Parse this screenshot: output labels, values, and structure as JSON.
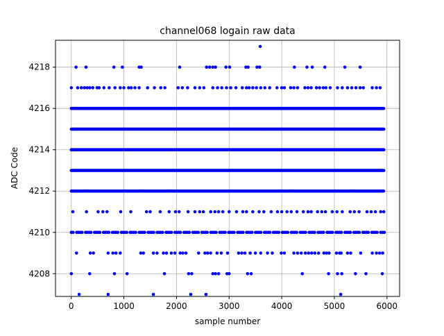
{
  "chart_data": {
    "type": "scatter",
    "title": "channel068 logain raw data",
    "xlabel": "sample number",
    "ylabel": "ADC Code",
    "xlim": [
      -300,
      6240
    ],
    "ylim": [
      4206.9,
      4219.3
    ],
    "xticks": [
      0,
      1000,
      2000,
      3000,
      4000,
      5000,
      6000
    ],
    "yticks": [
      4208,
      4210,
      4212,
      4214,
      4216,
      4218
    ],
    "xtick_labels": [
      "0",
      "1000",
      "2000",
      "3000",
      "4000",
      "5000",
      "6000"
    ],
    "ytick_labels": [
      "4208",
      "4210",
      "4212",
      "4214",
      "4216",
      "4218"
    ],
    "grid": true,
    "marker_color": "#0000ff",
    "n_samples": 5950,
    "series": [
      {
        "values_by_level": [
          {
            "y": 4207,
            "x": [
              150,
              700,
              1560,
              2270,
              2560,
              5120
            ]
          },
          {
            "y": 4208,
            "x": [
              0,
              350,
              820,
              1060,
              1770,
              2230,
              2290,
              2690,
              2740,
              2800,
              2960,
              3000,
              3350,
              3420,
              4390,
              4890,
              5060,
              5140,
              5400,
              5600,
              5910
            ]
          },
          {
            "y": 4209,
            "x": [
              100,
              360,
              420,
              700,
              790,
              850,
              930,
              1320,
              1370,
              1560,
              1630,
              1750,
              1810,
              1900,
              1970,
              2070,
              2120,
              2180,
              2420,
              2540,
              2590,
              2650,
              2770,
              2850,
              2970,
              3180,
              3240,
              3300,
              3400,
              3500,
              3600,
              3730,
              3820,
              3990,
              4050,
              4230,
              4300,
              4370,
              4450,
              4510,
              4570,
              4630,
              4700,
              4800,
              4850,
              4900,
              5040,
              5100,
              5130,
              5250,
              5310,
              5500,
              5720,
              5800,
              5860,
              5920
            ]
          },
          {
            "y": 4211,
            "x": [
              30,
              290,
              510,
              600,
              680,
              940,
              1130,
              1430,
              1500,
              1690,
              1860,
              1980,
              2050,
              2220,
              2350,
              2440,
              2510,
              2650,
              2730,
              2800,
              2880,
              3000,
              3140,
              3260,
              3330,
              3450,
              3570,
              3660,
              3800,
              3920,
              4000,
              4100,
              4180,
              4290,
              4410,
              4500,
              4560,
              4680,
              4760,
              4830,
              4960,
              5050,
              5150,
              5300,
              5380,
              5470,
              5620,
              5700,
              5780,
              5880,
              5940
            ]
          },
          {
            "y": 4217,
            "x": [
              0,
              120,
              190,
              250,
              300,
              350,
              410,
              490,
              530,
              620,
              720,
              830,
              930,
              1000,
              1090,
              1140,
              1210,
              1290,
              1450,
              1580,
              1700,
              1780,
              2030,
              2110,
              2210,
              2350,
              2440,
              2520,
              2690,
              2780,
              2860,
              2950,
              3030,
              3130,
              3250,
              3330,
              3380,
              3450,
              3520,
              3600,
              3680,
              3770,
              3910,
              4000,
              4050,
              4170,
              4230,
              4300,
              4440,
              4500,
              4560,
              4660,
              4720,
              4790,
              4840,
              4920,
              5060,
              5150,
              5250,
              5330,
              5410,
              5490,
              5550,
              5720,
              5800,
              5870
            ]
          },
          {
            "y": 4218,
            "x": [
              90,
              280,
              810,
              970,
              1290,
              1330,
              2060,
              2570,
              2630,
              2690,
              2740,
              2940,
              3010,
              3320,
              3360,
              3530,
              3580,
              4240,
              4480,
              4580,
              4820,
              5200,
              5490
            ]
          },
          {
            "y": 4219,
            "x": [
              3590
            ]
          }
        ],
        "dense_levels": [
          4212,
          4213,
          4214,
          4215,
          4216,
          4210
        ]
      }
    ]
  }
}
